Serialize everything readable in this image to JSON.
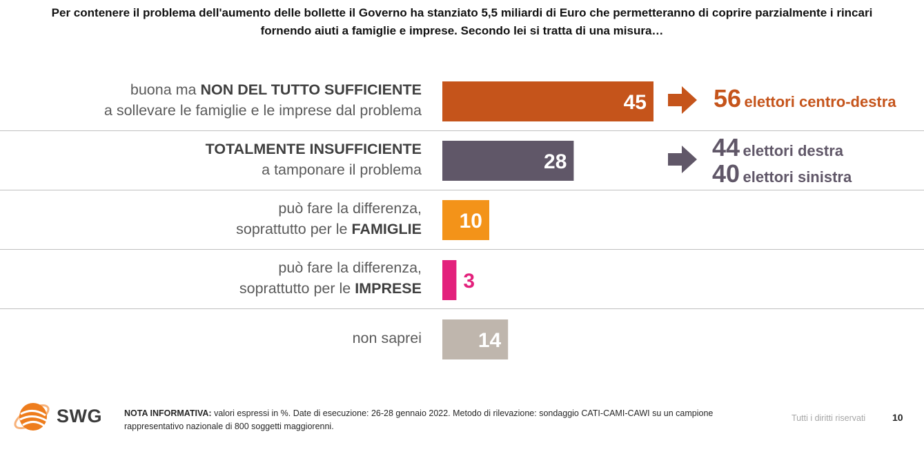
{
  "title": {
    "line1": "Per contenere il problema dell'aumento delle bollette il Governo ha stanziato 5,5 miliardi di Euro che permetteranno di coprire parzialmente i rincari",
    "line2": "fornendo aiuti a famiglie e imprese. Secondo lei si tratta di una misura…"
  },
  "rows": [
    {
      "line1_pre": "buona ma ",
      "line1_bold": "NON DEL TUTTO SUFFICIENTE",
      "line2_pre": "a sollevare le famiglie e le imprese dal problema",
      "line2_bold": ""
    },
    {
      "line1_pre": "",
      "line1_bold": "TOTALMENTE INSUFFICIENTE",
      "line2_pre": "a tamponare il problema",
      "line2_bold": ""
    },
    {
      "line1_pre": "può fare la differenza,",
      "line1_bold": "",
      "line2_pre": "soprattutto per le ",
      "line2_bold": "FAMIGLIE"
    },
    {
      "line1_pre": "può fare la differenza,",
      "line1_bold": "",
      "line2_pre": "soprattutto per le ",
      "line2_bold": "IMPRESE"
    },
    {
      "line1_pre": "non saprei",
      "line1_bold": "",
      "line2_pre": "",
      "line2_bold": ""
    }
  ],
  "chart_data": {
    "type": "bar",
    "orientation": "horizontal",
    "unit": "%",
    "categories": [
      "buona ma NON DEL TUTTO SUFFICIENTE a sollevare le famiglie e le imprese dal problema",
      "TOTALMENTE INSUFFICIENTE a tamponare il problema",
      "può fare la differenza, soprattutto per le FAMIGLIE",
      "può fare la differenza, soprattutto per le IMPRESE",
      "non saprei"
    ],
    "values": [
      45,
      28,
      10,
      3,
      14
    ],
    "colors": [
      "#c5541b",
      "#605768",
      "#f39319",
      "#e3217c",
      "#bfb6ad"
    ],
    "label_colors": [
      "#ffffff",
      "#ffffff",
      "#ffffff",
      "#e3217c",
      "#ffffff"
    ],
    "xlim": [
      0,
      100
    ],
    "grid": false,
    "legend": "none"
  },
  "annotations": {
    "row1": {
      "value": "56",
      "label": "elettori centro-destra",
      "color": "#c5541b"
    },
    "row2": [
      {
        "value": "44",
        "label": "elettori destra",
        "color": "#605768"
      },
      {
        "value": "40",
        "label": "elettori sinistra",
        "color": "#605768"
      }
    ]
  },
  "footer": {
    "brand": "SWG",
    "note_bold": "NOTA INFORMATIVA:",
    "note_text": " valori espressi in %. Date di esecuzione: 26-28 gennaio 2022. Metodo di rilevazione: sondaggio CATI-CAMI-CAWI su un campione rappresentativo nazionale di 800 soggetti maggiorenni.",
    "rights": "Tutti i diritti riservati",
    "page_number": "10"
  }
}
